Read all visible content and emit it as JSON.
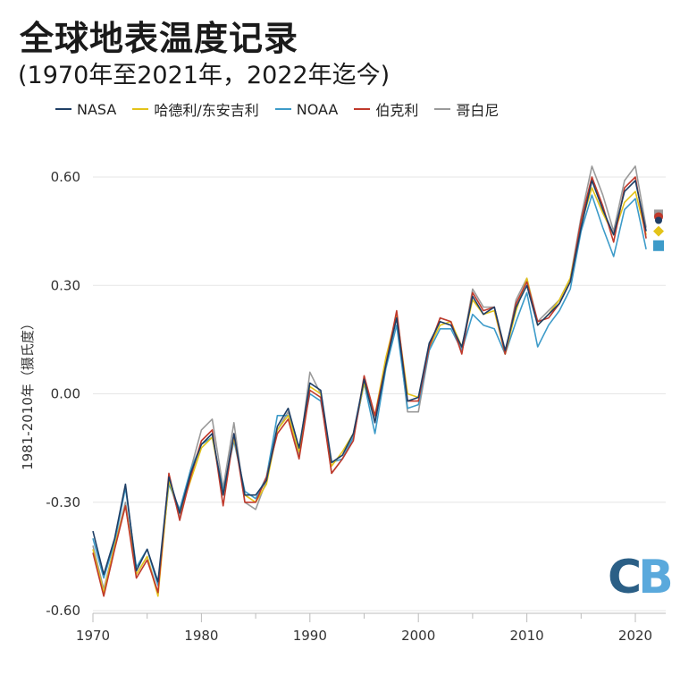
{
  "header": {
    "title": "全球地表温度记录",
    "subtitle": "(1970年至2021年，2022年迄今)"
  },
  "logo": {
    "c": "C",
    "b": "B"
  },
  "chart_data": {
    "type": "line",
    "title": "全球地表温度记录",
    "subtitle": "(1970年至2021年，2022年迄今)",
    "xlabel": "",
    "ylabel": "1981-2010年（摄氏度）",
    "xlim": [
      1970,
      2022
    ],
    "ylim": [
      -0.6,
      0.65
    ],
    "yticks": [
      -0.6,
      -0.3,
      0.0,
      0.3,
      0.6
    ],
    "ytick_labels": [
      "-0.60",
      "-0.30",
      "0.00",
      "0.30",
      "0.60"
    ],
    "xticks": [
      1970,
      1980,
      1990,
      2000,
      2010,
      2020
    ],
    "xtick_labels": [
      "1970",
      "1980",
      "1990",
      "2000",
      "2010",
      "2020"
    ],
    "grid": true,
    "legend": "top",
    "x": [
      1970,
      1971,
      1972,
      1973,
      1974,
      1975,
      1976,
      1977,
      1978,
      1979,
      1980,
      1981,
      1982,
      1983,
      1984,
      1985,
      1986,
      1987,
      1988,
      1989,
      1990,
      1991,
      1992,
      1993,
      1994,
      1995,
      1996,
      1997,
      1998,
      1999,
      2000,
      2001,
      2002,
      2003,
      2004,
      2005,
      2006,
      2007,
      2008,
      2009,
      2010,
      2011,
      2012,
      2013,
      2014,
      2015,
      2016,
      2017,
      2018,
      2019,
      2020,
      2021
    ],
    "series": [
      {
        "name": "NASA",
        "color": "#1f3f66",
        "values": [
          -0.38,
          -0.5,
          -0.4,
          -0.25,
          -0.49,
          -0.43,
          -0.52,
          -0.23,
          -0.33,
          -0.22,
          -0.14,
          -0.11,
          -0.28,
          -0.11,
          -0.28,
          -0.28,
          -0.24,
          -0.09,
          -0.04,
          -0.15,
          0.03,
          0.01,
          -0.19,
          -0.17,
          -0.11,
          0.04,
          -0.08,
          0.08,
          0.21,
          -0.02,
          -0.01,
          0.14,
          0.2,
          0.19,
          0.13,
          0.27,
          0.22,
          0.24,
          0.12,
          0.24,
          0.3,
          0.19,
          0.22,
          0.25,
          0.31,
          0.46,
          0.59,
          0.51,
          0.44,
          0.56,
          0.59,
          0.45
        ],
        "marker": 0.48
      },
      {
        "name": "哈德利/东安吉利",
        "color": "#e3c319",
        "values": [
          -0.43,
          -0.55,
          -0.42,
          -0.31,
          -0.5,
          -0.45,
          -0.56,
          -0.24,
          -0.33,
          -0.24,
          -0.15,
          -0.12,
          -0.28,
          -0.12,
          -0.28,
          -0.3,
          -0.25,
          -0.1,
          -0.06,
          -0.16,
          0.02,
          0.0,
          -0.2,
          -0.16,
          -0.11,
          0.03,
          -0.06,
          0.1,
          0.22,
          0.0,
          -0.01,
          0.13,
          0.19,
          0.2,
          0.13,
          0.26,
          0.22,
          0.23,
          0.11,
          0.23,
          0.32,
          0.19,
          0.22,
          0.26,
          0.32,
          0.47,
          0.57,
          0.5,
          0.44,
          0.53,
          0.56,
          0.44
        ],
        "marker": 0.45
      },
      {
        "name": "NOAA",
        "color": "#3d9bc9",
        "values": [
          -0.4,
          -0.51,
          -0.41,
          -0.26,
          -0.48,
          -0.43,
          -0.53,
          -0.25,
          -0.32,
          -0.21,
          -0.14,
          -0.12,
          -0.27,
          -0.13,
          -0.27,
          -0.29,
          -0.23,
          -0.06,
          -0.06,
          -0.15,
          0.0,
          -0.02,
          -0.19,
          -0.18,
          -0.12,
          0.03,
          -0.11,
          0.07,
          0.19,
          -0.04,
          -0.03,
          0.12,
          0.18,
          0.18,
          0.12,
          0.22,
          0.19,
          0.18,
          0.11,
          0.2,
          0.28,
          0.13,
          0.19,
          0.23,
          0.29,
          0.45,
          0.55,
          0.46,
          0.38,
          0.51,
          0.54,
          0.4
        ],
        "marker": 0.41
      },
      {
        "name": "伯克利",
        "color": "#c0392b",
        "values": [
          -0.44,
          -0.56,
          -0.43,
          -0.31,
          -0.51,
          -0.46,
          -0.55,
          -0.22,
          -0.35,
          -0.23,
          -0.13,
          -0.1,
          -0.31,
          -0.11,
          -0.3,
          -0.3,
          -0.23,
          -0.11,
          -0.07,
          -0.18,
          0.01,
          -0.01,
          -0.22,
          -0.18,
          -0.13,
          0.05,
          -0.06,
          0.08,
          0.23,
          -0.02,
          -0.02,
          0.13,
          0.21,
          0.2,
          0.11,
          0.28,
          0.23,
          0.24,
          0.11,
          0.25,
          0.31,
          0.2,
          0.21,
          0.25,
          0.31,
          0.48,
          0.6,
          0.52,
          0.42,
          0.57,
          0.6,
          0.43
        ],
        "marker": 0.49
      },
      {
        "name": "哥白尼",
        "color": "#9a9a9a",
        "values": [
          -0.42,
          -0.54,
          -0.42,
          -0.3,
          -0.5,
          -0.45,
          -0.55,
          -0.24,
          -0.34,
          -0.21,
          -0.1,
          -0.07,
          -0.26,
          -0.08,
          -0.3,
          -0.32,
          -0.24,
          -0.1,
          -0.05,
          -0.17,
          0.06,
          0.0,
          -0.22,
          -0.18,
          -0.12,
          0.03,
          -0.07,
          0.09,
          0.21,
          -0.05,
          -0.05,
          0.12,
          0.21,
          0.2,
          0.12,
          0.29,
          0.24,
          0.24,
          0.11,
          0.26,
          0.32,
          0.2,
          0.23,
          0.26,
          0.32,
          0.49,
          0.63,
          0.55,
          0.45,
          0.59,
          0.63,
          0.46
        ],
        "marker": 0.5
      }
    ]
  }
}
